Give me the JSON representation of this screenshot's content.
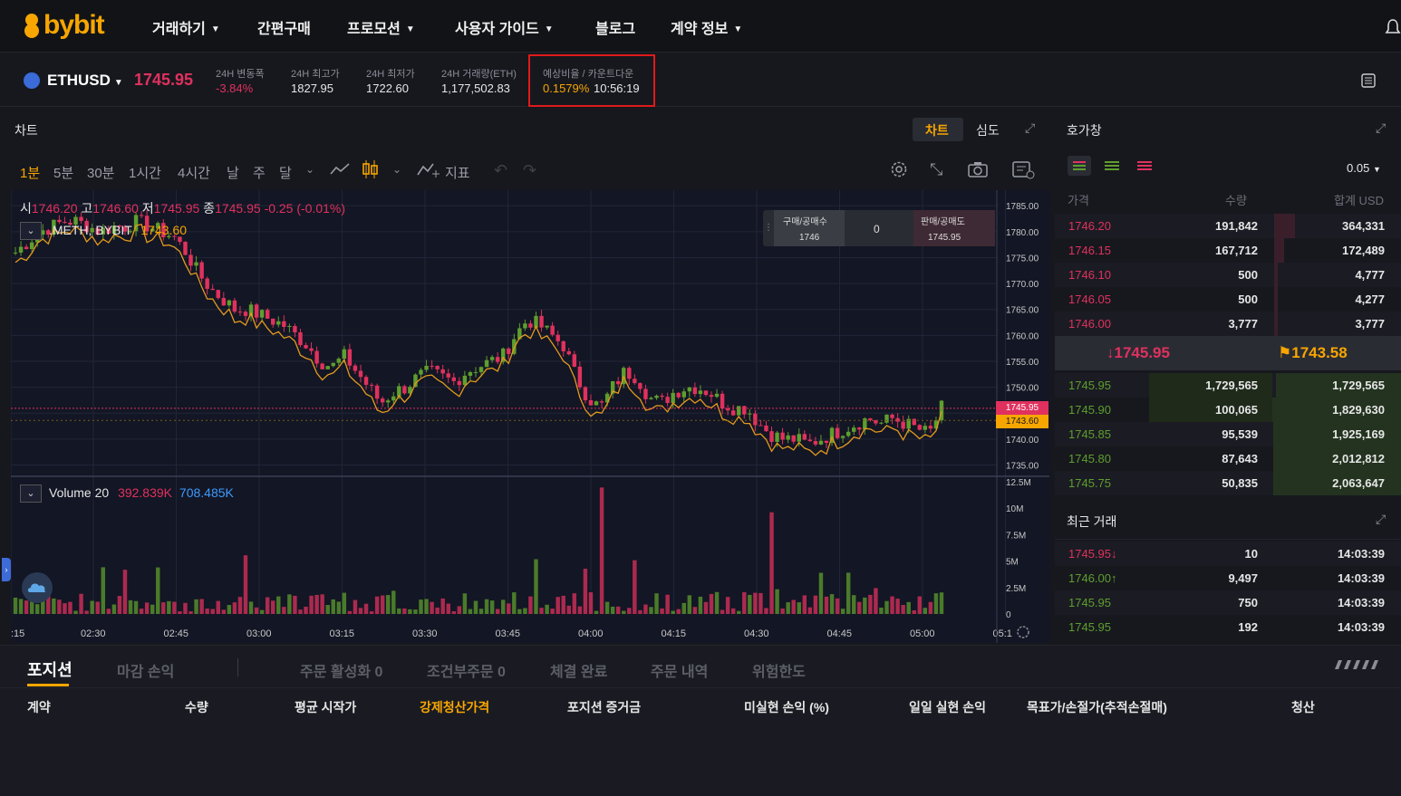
{
  "nav": {
    "logo": "bybit",
    "items": [
      "거래하기",
      "간편구매",
      "프로모션",
      "사용자 가이드",
      "블로그",
      "계약 정보"
    ]
  },
  "ticker": {
    "symbol": "ETHUSD",
    "last_price": "1745.95",
    "change_label": "24H 변동폭",
    "change_value": "-3.84%",
    "high_label": "24H 최고가",
    "high_value": "1827.95",
    "low_label": "24H 최저가",
    "low_value": "1722.60",
    "volume_label": "24H 거래량(ETH)",
    "volume_value": "1,177,502.83",
    "funding_label": "예상비율 / 카운트다운",
    "funding_rate": "0.1579%",
    "funding_countdown": "10:56:19"
  },
  "chart_panel": {
    "title": "차트",
    "tab_chart": "차트",
    "tab_depth": "심도",
    "timeframes": [
      "1분",
      "5분",
      "30분",
      "1시간",
      "4시간",
      "날",
      "주",
      "달"
    ],
    "indicators_label": "지표",
    "ohlc": {
      "o_label": "시",
      "o": "1746.20",
      "h_label": "고",
      "h": "1746.60",
      "l_label": "저",
      "l": "1745.95",
      "c_label": "종",
      "c": "1745.95",
      "change": "-0.25 (-0.01%)"
    },
    "symbol_line": ".METH, BYBIT",
    "symbol_line_value": "1743.60",
    "buy_sell": {
      "buy_label": "구매/공매수",
      "buy_value": "1746",
      "spread": "0",
      "sell_label": "판매/공매도",
      "sell_value": "1745.95"
    },
    "price_tag_last": "1745.95",
    "price_tag_mark": "1743.60",
    "volume_label": "Volume 20",
    "volume_v1": "392.839K",
    "volume_v2": "708.485K"
  },
  "chart_data": {
    "type": "candlestick",
    "y_ticks": [
      "1785.00",
      "1780.00",
      "1775.00",
      "1770.00",
      "1765.00",
      "1760.00",
      "1755.00",
      "1750.00",
      "1745.00",
      "1740.00",
      "1735.00"
    ],
    "ylim": [
      1733,
      1788
    ],
    "volume_ticks": [
      "12.5M",
      "10M",
      "7.5M",
      "5M",
      "2.5M",
      "0"
    ],
    "x_ticks": [
      ":15",
      "02:30",
      "02:45",
      "03:00",
      "03:15",
      "03:30",
      "03:45",
      "04:00",
      "04:15",
      "04:30",
      "04:45",
      "05:00",
      "05:1"
    ],
    "close_path": [
      1776,
      1778,
      1780,
      1781,
      1782,
      1782,
      1781,
      1780,
      1781,
      1781,
      1782,
      1781,
      1780,
      1779,
      1776,
      1772,
      1769,
      1767,
      1765,
      1765,
      1764,
      1763,
      1762,
      1760,
      1758,
      1755,
      1754,
      1756,
      1753,
      1750,
      1747,
      1749,
      1750,
      1752,
      1753,
      1752,
      1751,
      1753,
      1754,
      1755,
      1756,
      1760,
      1763,
      1762,
      1760,
      1758,
      1752,
      1748,
      1746,
      1750,
      1753,
      1752,
      1748,
      1747,
      1749,
      1750,
      1750,
      1749,
      1747,
      1746,
      1746,
      1743,
      1741,
      1740,
      1740,
      1739,
      1740,
      1741,
      1742,
      1743,
      1744,
      1743,
      1744,
      1743,
      1742,
      1741,
      1746
    ]
  },
  "orderbook": {
    "title": "호가창",
    "step": "0.05",
    "col_price": "가격",
    "col_qty": "수량",
    "col_total": "합계 USD",
    "asks": [
      {
        "price": "1746.20",
        "qty": "191,842",
        "total": "364,331",
        "depth": 0.06
      },
      {
        "price": "1746.15",
        "qty": "167,712",
        "total": "172,489",
        "depth": 0.03
      },
      {
        "price": "1746.10",
        "qty": "500",
        "total": "4,777",
        "depth": 0.01
      },
      {
        "price": "1746.05",
        "qty": "500",
        "total": "4,277",
        "depth": 0.01
      },
      {
        "price": "1746.00",
        "qty": "3,777",
        "total": "3,777",
        "depth": 0.01
      }
    ],
    "last_price": "1745.95",
    "mark_price": "1743.58",
    "bids": [
      {
        "price": "1745.95",
        "qty": "1,729,565",
        "total": "1,729,565",
        "depth": 0.36
      },
      {
        "price": "1745.90",
        "qty": "100,065",
        "total": "1,829,630",
        "depth": 0.38
      },
      {
        "price": "1745.85",
        "qty": "95,539",
        "total": "1,925,169",
        "depth": 0.37
      },
      {
        "price": "1745.80",
        "qty": "87,643",
        "total": "2,012,812",
        "depth": 0.37
      },
      {
        "price": "1745.75",
        "qty": "50,835",
        "total": "2,063,647",
        "depth": 0.37
      }
    ]
  },
  "trades": {
    "title": "최근 거래",
    "rows": [
      {
        "price": "1745.95",
        "dir": "down",
        "qty": "10",
        "time": "14:03:39"
      },
      {
        "price": "1746.00",
        "dir": "up",
        "qty": "9,497",
        "time": "14:03:39"
      },
      {
        "price": "1745.95",
        "dir": "",
        "qty": "750",
        "time": "14:03:39"
      },
      {
        "price": "1745.95",
        "dir": "",
        "qty": "192",
        "time": "14:03:39"
      }
    ]
  },
  "bottom": {
    "tabs": [
      "포지션",
      "마감 손익",
      "주문 활성화 0",
      "조건부주문 0",
      "체결 완료",
      "주문 내역",
      "위험한도"
    ],
    "columns": [
      "계약",
      "수량",
      "평균 시작가",
      "강제청산가격",
      "포지션 증거금",
      "미실현 손익 (%)",
      "일일 실현 손익",
      "목표가/손절가(추적손절매)",
      "청산"
    ]
  },
  "colors": {
    "up": "#5e9e2e",
    "down": "#e0315e",
    "accent": "#f7a600",
    "highlight_box": "#e01a1a"
  }
}
